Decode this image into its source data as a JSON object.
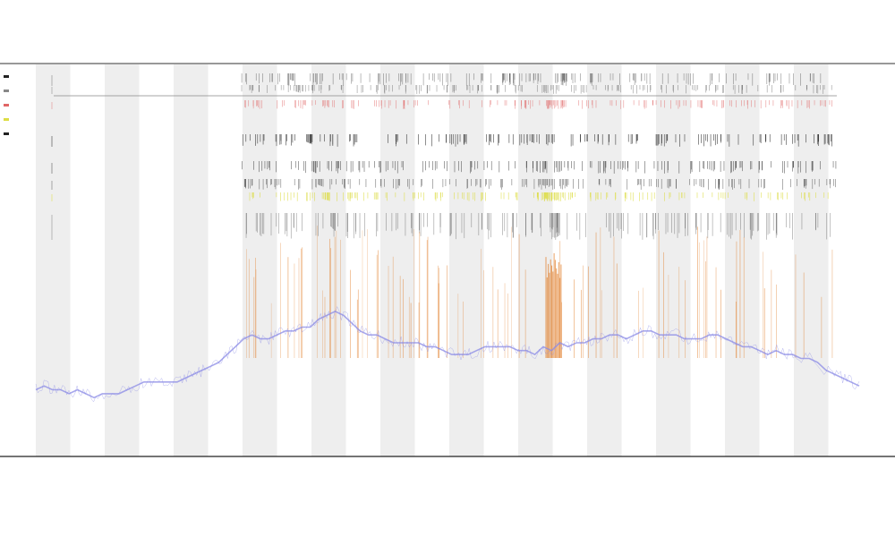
{
  "chart_data": {
    "type": "line",
    "title": "",
    "subtitle_lines": [],
    "xlabel": "",
    "ylabel": "",
    "legend_placement": "left",
    "band_color": "#eeeeee",
    "grid": false,
    "x_domain": [
      0,
      1000
    ],
    "y_domain": [
      0,
      1
    ],
    "series": [
      {
        "color": "#8a8ae6",
        "values": [
          0.17,
          0.18,
          0.17,
          0.17,
          0.16,
          0.17,
          0.16,
          0.15,
          0.16,
          0.16,
          0.16,
          0.17,
          0.18,
          0.19,
          0.19,
          0.19,
          0.19,
          0.19,
          0.2,
          0.21,
          0.22,
          0.23,
          0.24,
          0.26,
          0.28,
          0.3,
          0.31,
          0.3,
          0.3,
          0.31,
          0.32,
          0.32,
          0.33,
          0.33,
          0.35,
          0.36,
          0.37,
          0.36,
          0.34,
          0.32,
          0.31,
          0.31,
          0.3,
          0.29,
          0.29,
          0.29,
          0.29,
          0.28,
          0.28,
          0.27,
          0.26,
          0.26,
          0.26,
          0.27,
          0.28,
          0.28,
          0.28,
          0.28,
          0.27,
          0.27,
          0.26,
          0.28,
          0.27,
          0.29,
          0.28,
          0.29,
          0.29,
          0.3,
          0.3,
          0.31,
          0.31,
          0.3,
          0.31,
          0.32,
          0.32,
          0.31,
          0.31,
          0.31,
          0.3,
          0.3,
          0.3,
          0.31,
          0.31,
          0.3,
          0.29,
          0.28,
          0.28,
          0.27,
          0.26,
          0.27,
          0.26,
          0.26,
          0.25,
          0.25,
          0.24,
          0.22,
          0.21,
          0.2,
          0.19,
          0.18
        ]
      }
    ],
    "track_rows": [
      {
        "color": "#333333",
        "opacity": 0.55
      },
      {
        "color": "#333333",
        "opacity": 0.5
      },
      {
        "color": "#e06666",
        "opacity": 0.7
      },
      {
        "color": "#222222",
        "opacity": 0.85
      },
      {
        "color": "#222222",
        "opacity": 0.7
      },
      {
        "color": "#222222",
        "opacity": 0.6
      },
      {
        "color": "#dddd44",
        "opacity": 0.9
      },
      {
        "color": "#222222",
        "opacity": 0.45
      }
    ],
    "peak_color": "#e07820",
    "legend_entries": [
      {
        "label": "",
        "color": "#222222"
      },
      {
        "label": "",
        "color": "#888888"
      },
      {
        "label": "",
        "color": "#e06666"
      },
      {
        "label": "",
        "color": "#dddd44"
      },
      {
        "label": "",
        "color": "#222222"
      }
    ],
    "x_tick_labels": []
  }
}
